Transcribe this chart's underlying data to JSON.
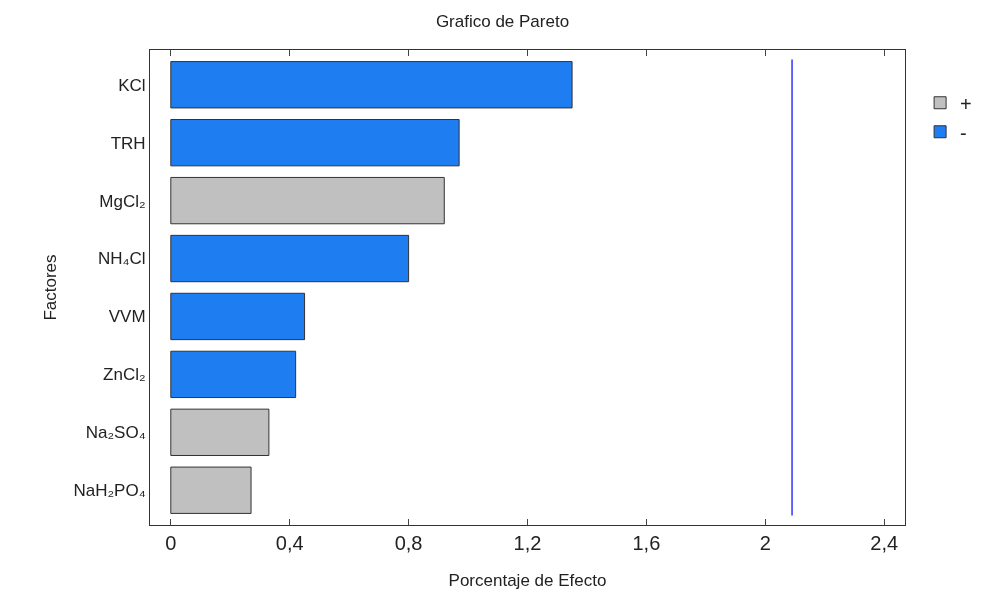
{
  "chart_data": {
    "type": "bar",
    "orientation": "horizontal",
    "title": "Grafico de Pareto",
    "xlabel": "Porcentaje de Efecto",
    "ylabel": "Factores",
    "categories": [
      "KCl",
      "TRH",
      "MgCl₂",
      "NH₄Cl",
      "VVM",
      "ZnCl₂",
      "Na₂SO₄",
      "NaH₂PO₄"
    ],
    "series": [
      {
        "name": "+",
        "color": "#c0c0c0",
        "values": [
          null,
          null,
          0.92,
          null,
          null,
          null,
          0.33,
          0.27
        ]
      },
      {
        "name": "-",
        "color": "#1e7df0",
        "values": [
          1.35,
          0.97,
          null,
          0.8,
          0.45,
          0.42,
          null,
          null
        ]
      }
    ],
    "xlim": [
      -0.07,
      2.47
    ],
    "xticks": [
      0,
      {
        "value": 0.4,
        "label": "0,4"
      },
      {
        "value": 0.8,
        "label": "0,8"
      },
      {
        "value": 1.2,
        "label": "1,2"
      },
      {
        "value": 1.6,
        "label": "1,6"
      },
      2,
      {
        "value": 2.4,
        "label": "2,4"
      }
    ],
    "ref_lines": [
      {
        "axis": "x",
        "value": 2.09,
        "color": "#3333ff"
      }
    ],
    "grid": false,
    "legend": "top right"
  }
}
